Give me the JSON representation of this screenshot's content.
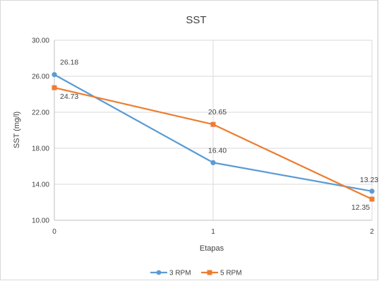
{
  "chart_data": {
    "type": "line",
    "title": "SST",
    "xlabel": "Etapas",
    "ylabel": "SST (mg/l)",
    "x": [
      0,
      1,
      2
    ],
    "x_tick_labels": [
      "0",
      "1",
      "2"
    ],
    "ylim": [
      10.0,
      30.0
    ],
    "y_ticks": [
      10.0,
      14.0,
      18.0,
      22.0,
      26.0,
      30.0
    ],
    "y_tick_labels": [
      "10.00",
      "14.00",
      "18.00",
      "22.00",
      "26.00",
      "30.00"
    ],
    "grid": true,
    "legend_position": "bottom",
    "series": [
      {
        "name": "3 RPM",
        "color": "#5b9bd5",
        "marker": "circle",
        "values": [
          26.18,
          16.4,
          13.23
        ],
        "labels": [
          "26.18",
          "16.40",
          "13.23"
        ]
      },
      {
        "name": "5 RPM",
        "color": "#ed7d31",
        "marker": "square",
        "values": [
          24.73,
          20.65,
          12.35
        ],
        "labels": [
          "24.73",
          "20.65",
          "12.35"
        ]
      }
    ]
  }
}
